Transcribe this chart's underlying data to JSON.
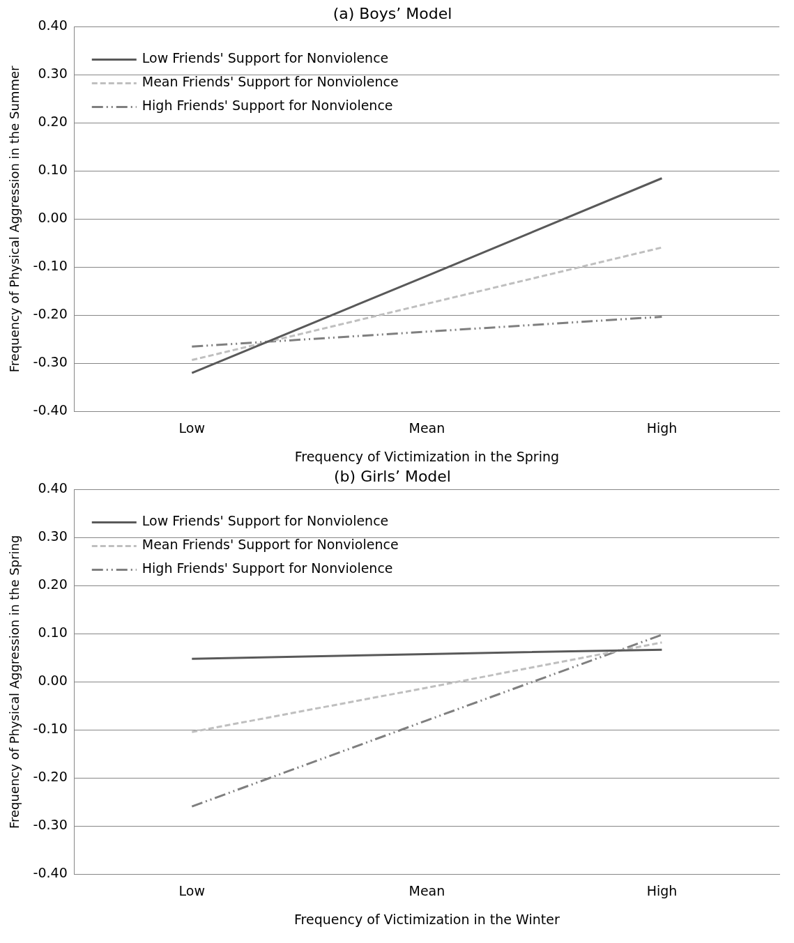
{
  "chart_data": [
    {
      "type": "line",
      "title": "(a) Boys’ Model",
      "xlabel": "Frequency of Victimization in the Spring",
      "ylabel": "Frequency of Physical Aggression in the Summer",
      "categories": [
        "Low",
        "Mean",
        "High"
      ],
      "ylim": [
        -0.4,
        0.4
      ],
      "yticks": [
        {
          "value": -0.4,
          "label": "-0.40"
        },
        {
          "value": -0.3,
          "label": "-0.30"
        },
        {
          "value": -0.2,
          "label": "-0.20"
        },
        {
          "value": -0.1,
          "label": "-0.10"
        },
        {
          "value": 0,
          "label": "0.00"
        },
        {
          "value": 0.1,
          "label": "0.10"
        },
        {
          "value": 0.2,
          "label": "0.20"
        },
        {
          "value": 0.3,
          "label": "0.30"
        },
        {
          "value": 0.4,
          "label": "0.40"
        }
      ],
      "grid": "y",
      "legend": "top left",
      "marker": "none",
      "series": [
        {
          "name": "Low Friends' Support for Nonviolence",
          "color": "#595959",
          "line_style": "solid",
          "values": [
            -0.32,
            -0.118,
            0.085
          ]
        },
        {
          "name": "Mean Friends' Support for Nonviolence",
          "color": "#bfbfbf",
          "line_style": "dashed",
          "values": [
            -0.293,
            -0.176,
            -0.059
          ]
        },
        {
          "name": "High Friends' Support for Nonviolence",
          "color": "#7f7f7f",
          "line_style": "dotted",
          "values": [
            -0.265,
            -0.234,
            -0.203
          ]
        }
      ]
    },
    {
      "type": "line",
      "title": "(b) Girls’ Model",
      "xlabel": "Frequency of Victimization in the Winter",
      "ylabel": "Frequency of Physical Aggression in the Spring",
      "categories": [
        "Low",
        "Mean",
        "High"
      ],
      "ylim": [
        -0.4,
        0.4
      ],
      "yticks": [
        {
          "value": -0.4,
          "label": "-0.40"
        },
        {
          "value": -0.3,
          "label": "-0.30"
        },
        {
          "value": -0.2,
          "label": "-0.20"
        },
        {
          "value": -0.1,
          "label": "-0.10"
        },
        {
          "value": 0,
          "label": "0.00"
        },
        {
          "value": 0.1,
          "label": "0.10"
        },
        {
          "value": 0.2,
          "label": "0.20"
        },
        {
          "value": 0.3,
          "label": "0.30"
        },
        {
          "value": 0.4,
          "label": "0.40"
        }
      ],
      "grid": "y",
      "legend": "top left",
      "marker": "none",
      "series": [
        {
          "name": "Low Friends' Support for Nonviolence",
          "color": "#595959",
          "line_style": "solid",
          "values": [
            0.048,
            0.058,
            0.067
          ]
        },
        {
          "name": "Mean Friends' Support for Nonviolence",
          "color": "#bfbfbf",
          "line_style": "dashed",
          "values": [
            -0.104,
            -0.012,
            0.082
          ]
        },
        {
          "name": "High Friends' Support for Nonviolence",
          "color": "#7f7f7f",
          "line_style": "dotted",
          "values": [
            -0.259,
            -0.08,
            0.098
          ]
        }
      ]
    }
  ]
}
